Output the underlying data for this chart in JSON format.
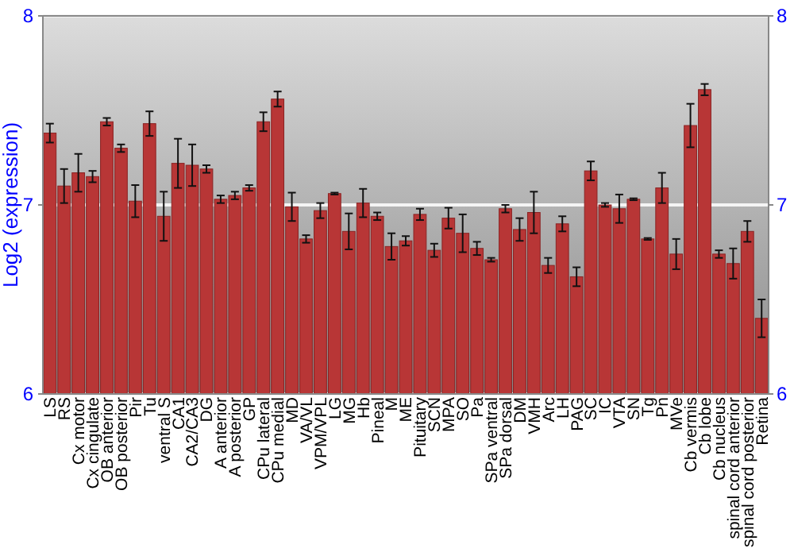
{
  "chart_data": {
    "type": "bar",
    "ylabel": "Log2 (expression)",
    "categories": [
      "LS",
      "RS",
      "Cx motor",
      "Cx cingulate",
      "OB anterior",
      "OB posterior",
      "Pir",
      "Tu",
      "ventral S",
      "CA1",
      "CA2/CA3",
      "DG",
      "A anterior",
      "A posterior",
      "GP",
      "CPu lateral",
      "CPu medial",
      "MD",
      "VA/VL",
      "VPM/VPL",
      "LG",
      "MG",
      "Hb",
      "Pineal",
      "M",
      "ME",
      "Pituitary",
      "SCN",
      "MPA",
      "SO",
      "Pa",
      "SPa ventral",
      "SPa dorsal",
      "DM",
      "VMH",
      "Arc",
      "LH",
      "PAG",
      "SC",
      "IC",
      "VTA",
      "SN",
      "Tg",
      "Pn",
      "MVe",
      "Cb vermis",
      "Cb lobe",
      "Cb nucleus",
      "spinal cord anterior",
      "spinal cord posterior",
      "Retina"
    ],
    "values": [
      7.38,
      7.1,
      7.17,
      7.15,
      7.44,
      7.3,
      7.02,
      7.43,
      6.94,
      7.22,
      7.21,
      7.19,
      7.03,
      7.05,
      7.09,
      7.44,
      7.56,
      6.99,
      6.82,
      6.97,
      7.06,
      6.86,
      7.01,
      6.94,
      6.78,
      6.81,
      6.95,
      6.76,
      6.93,
      6.85,
      6.77,
      6.71,
      6.98,
      6.87,
      6.96,
      6.68,
      6.9,
      6.62,
      7.18,
      7.0,
      6.98,
      7.03,
      6.82,
      7.09,
      6.74,
      7.42,
      7.61,
      6.74,
      6.69,
      6.86,
      6.4
    ],
    "errors": [
      0.05,
      0.09,
      0.1,
      0.03,
      0.02,
      0.02,
      0.085,
      0.065,
      0.13,
      0.13,
      0.11,
      0.02,
      0.02,
      0.02,
      0.015,
      0.05,
      0.04,
      0.075,
      0.02,
      0.04,
      0.005,
      0.095,
      0.075,
      0.02,
      0.07,
      0.025,
      0.03,
      0.035,
      0.055,
      0.1,
      0.035,
      0.01,
      0.02,
      0.06,
      0.11,
      0.04,
      0.04,
      0.05,
      0.05,
      0.01,
      0.075,
      0.005,
      0.005,
      0.08,
      0.08,
      0.115,
      0.03,
      0.02,
      0.08,
      0.055,
      0.1
    ],
    "color": "#b83636",
    "ylim": [
      6,
      8
    ],
    "yticks": [
      6,
      7,
      8
    ],
    "y2lim": [
      6,
      8
    ],
    "y2ticks": [
      6,
      7,
      8
    ],
    "grid": "y"
  }
}
